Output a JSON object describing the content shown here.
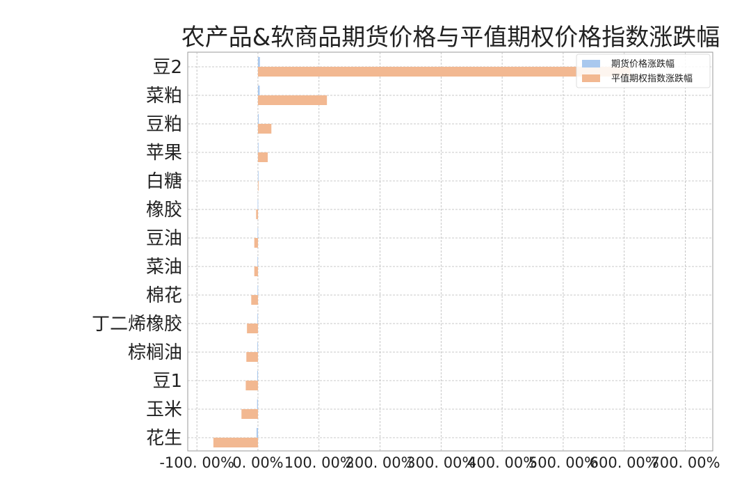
{
  "chart_data": {
    "type": "bar",
    "orientation": "horizontal",
    "title": "农产品&软商品期货价格与平值期权价格指数涨跌幅",
    "categories": [
      "豆2",
      "菜粕",
      "豆粕",
      "苹果",
      "白糖",
      "橡胶",
      "豆油",
      "菜油",
      "棉花",
      "丁二烯橡胶",
      "棕榈油",
      "豆1",
      "玉米",
      "花生"
    ],
    "series": [
      {
        "name": "期货价格涨跌幅",
        "color": "#a9c8ee",
        "values": [
          3.2,
          2.8,
          1.2,
          0.6,
          0.4,
          -0.5,
          -0.6,
          -0.8,
          -0.7,
          -0.9,
          -1.0,
          -1.2,
          -1.4,
          -2.3
        ]
      },
      {
        "name": "平值期权指数涨跌幅",
        "color": "#f2b891",
        "values": [
          610,
          113,
          22,
          16,
          1,
          -3,
          -6,
          -6,
          -11,
          -18,
          -19,
          -20,
          -27,
          -73
        ]
      }
    ],
    "x_ticks": [
      -100,
      0,
      100,
      200,
      300,
      400,
      500,
      600,
      700
    ],
    "x_tick_labels": [
      "-100. 00%",
      "0. 00%",
      "100. 00%",
      "200. 00%",
      "300. 00%",
      "400. 00%",
      "500. 00%",
      "600. 00%",
      "700. 00%"
    ],
    "xlim": [
      -115,
      745
    ],
    "value_unit": "percent",
    "grid": true,
    "grid_style": "dashed",
    "legend_position": "top-right",
    "xlabel": "",
    "ylabel": ""
  }
}
